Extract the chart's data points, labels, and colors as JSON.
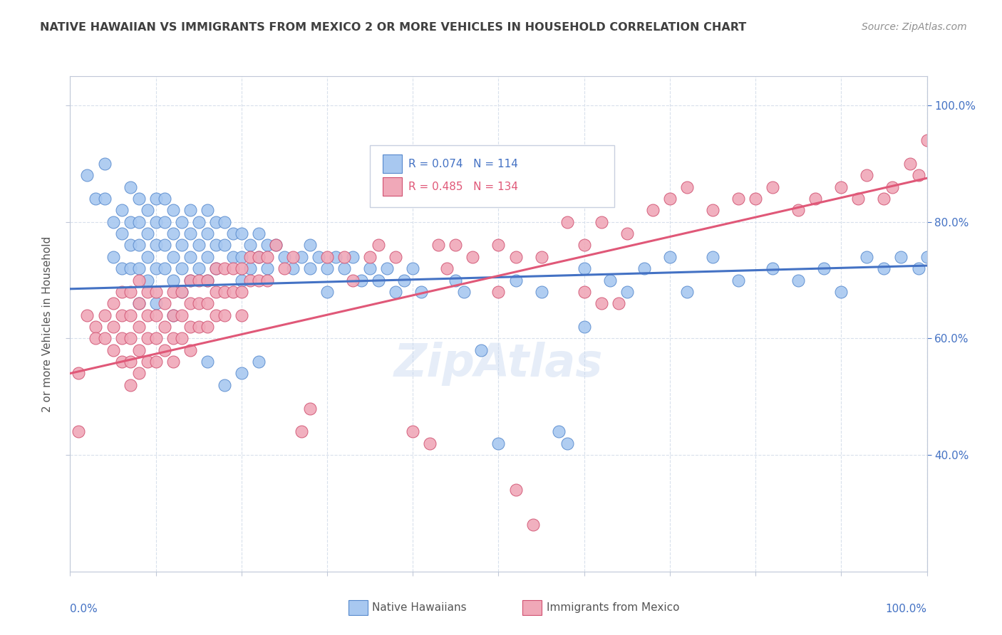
{
  "title": "NATIVE HAWAIIAN VS IMMIGRANTS FROM MEXICO 2 OR MORE VEHICLES IN HOUSEHOLD CORRELATION CHART",
  "source": "Source: ZipAtlas.com",
  "ylabel": "2 or more Vehicles in Household",
  "legend_blue_label": "R = 0.074   N = 114",
  "legend_pink_label": "R = 0.485   N = 134",
  "legend_bottom_blue": "Native Hawaiians",
  "legend_bottom_pink": "Immigrants from Mexico",
  "blue_color": "#a8c8f0",
  "pink_color": "#f0a8b8",
  "blue_edge_color": "#5588cc",
  "pink_edge_color": "#d05070",
  "blue_line_color": "#4472c4",
  "pink_line_color": "#e05878",
  "title_color": "#404040",
  "source_color": "#909090",
  "axis_label_color": "#4472c4",
  "grid_color": "#d8e0ec",
  "background_color": "#ffffff",
  "blue_R": 0.074,
  "pink_R": 0.485,
  "xlim": [
    0.0,
    1.0
  ],
  "ylim": [
    0.2,
    1.05
  ],
  "right_yticks": [
    0.4,
    0.6,
    0.8,
    1.0
  ],
  "right_yticklabels": [
    "40.0%",
    "60.0%",
    "80.0%",
    "100.0%"
  ],
  "blue_line_y0": 0.685,
  "blue_line_y1": 0.725,
  "pink_line_y0": 0.54,
  "pink_line_y1": 0.875,
  "blue_scatter": [
    [
      0.02,
      0.88
    ],
    [
      0.03,
      0.84
    ],
    [
      0.04,
      0.9
    ],
    [
      0.04,
      0.84
    ],
    [
      0.05,
      0.8
    ],
    [
      0.05,
      0.74
    ],
    [
      0.06,
      0.82
    ],
    [
      0.06,
      0.78
    ],
    [
      0.06,
      0.72
    ],
    [
      0.07,
      0.86
    ],
    [
      0.07,
      0.8
    ],
    [
      0.07,
      0.76
    ],
    [
      0.07,
      0.72
    ],
    [
      0.08,
      0.84
    ],
    [
      0.08,
      0.8
    ],
    [
      0.08,
      0.76
    ],
    [
      0.08,
      0.72
    ],
    [
      0.09,
      0.82
    ],
    [
      0.09,
      0.78
    ],
    [
      0.09,
      0.74
    ],
    [
      0.09,
      0.7
    ],
    [
      0.1,
      0.84
    ],
    [
      0.1,
      0.8
    ],
    [
      0.1,
      0.76
    ],
    [
      0.1,
      0.72
    ],
    [
      0.11,
      0.84
    ],
    [
      0.11,
      0.8
    ],
    [
      0.11,
      0.76
    ],
    [
      0.11,
      0.72
    ],
    [
      0.12,
      0.82
    ],
    [
      0.12,
      0.78
    ],
    [
      0.12,
      0.74
    ],
    [
      0.12,
      0.7
    ],
    [
      0.13,
      0.8
    ],
    [
      0.13,
      0.76
    ],
    [
      0.13,
      0.72
    ],
    [
      0.13,
      0.68
    ],
    [
      0.14,
      0.82
    ],
    [
      0.14,
      0.78
    ],
    [
      0.14,
      0.74
    ],
    [
      0.14,
      0.7
    ],
    [
      0.15,
      0.8
    ],
    [
      0.15,
      0.76
    ],
    [
      0.15,
      0.72
    ],
    [
      0.16,
      0.82
    ],
    [
      0.16,
      0.78
    ],
    [
      0.16,
      0.74
    ],
    [
      0.16,
      0.7
    ],
    [
      0.17,
      0.8
    ],
    [
      0.17,
      0.76
    ],
    [
      0.17,
      0.72
    ],
    [
      0.18,
      0.8
    ],
    [
      0.18,
      0.76
    ],
    [
      0.19,
      0.78
    ],
    [
      0.19,
      0.74
    ],
    [
      0.2,
      0.78
    ],
    [
      0.2,
      0.74
    ],
    [
      0.2,
      0.7
    ],
    [
      0.21,
      0.76
    ],
    [
      0.21,
      0.72
    ],
    [
      0.22,
      0.78
    ],
    [
      0.22,
      0.74
    ],
    [
      0.23,
      0.76
    ],
    [
      0.23,
      0.72
    ],
    [
      0.24,
      0.76
    ],
    [
      0.25,
      0.74
    ],
    [
      0.26,
      0.72
    ],
    [
      0.27,
      0.74
    ],
    [
      0.28,
      0.76
    ],
    [
      0.28,
      0.72
    ],
    [
      0.29,
      0.74
    ],
    [
      0.3,
      0.72
    ],
    [
      0.3,
      0.68
    ],
    [
      0.31,
      0.74
    ],
    [
      0.32,
      0.72
    ],
    [
      0.33,
      0.74
    ],
    [
      0.34,
      0.7
    ],
    [
      0.35,
      0.72
    ],
    [
      0.36,
      0.7
    ],
    [
      0.37,
      0.72
    ],
    [
      0.38,
      0.68
    ],
    [
      0.39,
      0.7
    ],
    [
      0.4,
      0.72
    ],
    [
      0.41,
      0.68
    ],
    [
      0.43,
      0.92
    ],
    [
      0.44,
      0.88
    ],
    [
      0.45,
      0.7
    ],
    [
      0.46,
      0.68
    ],
    [
      0.48,
      0.58
    ],
    [
      0.5,
      0.42
    ],
    [
      0.52,
      0.7
    ],
    [
      0.55,
      0.68
    ],
    [
      0.57,
      0.44
    ],
    [
      0.58,
      0.42
    ],
    [
      0.6,
      0.72
    ],
    [
      0.6,
      0.62
    ],
    [
      0.63,
      0.7
    ],
    [
      0.65,
      0.68
    ],
    [
      0.67,
      0.72
    ],
    [
      0.7,
      0.74
    ],
    [
      0.72,
      0.68
    ],
    [
      0.75,
      0.74
    ],
    [
      0.78,
      0.7
    ],
    [
      0.82,
      0.72
    ],
    [
      0.85,
      0.7
    ],
    [
      0.88,
      0.72
    ],
    [
      0.9,
      0.68
    ],
    [
      0.93,
      0.74
    ],
    [
      0.95,
      0.72
    ],
    [
      0.97,
      0.74
    ],
    [
      0.99,
      0.72
    ],
    [
      1.0,
      0.74
    ],
    [
      0.16,
      0.56
    ],
    [
      0.18,
      0.52
    ],
    [
      0.2,
      0.54
    ],
    [
      0.22,
      0.56
    ],
    [
      0.08,
      0.66
    ],
    [
      0.1,
      0.66
    ],
    [
      0.12,
      0.64
    ]
  ],
  "pink_scatter": [
    [
      0.02,
      0.64
    ],
    [
      0.03,
      0.62
    ],
    [
      0.03,
      0.6
    ],
    [
      0.04,
      0.64
    ],
    [
      0.04,
      0.6
    ],
    [
      0.05,
      0.66
    ],
    [
      0.05,
      0.62
    ],
    [
      0.05,
      0.58
    ],
    [
      0.06,
      0.68
    ],
    [
      0.06,
      0.64
    ],
    [
      0.06,
      0.6
    ],
    [
      0.06,
      0.56
    ],
    [
      0.07,
      0.68
    ],
    [
      0.07,
      0.64
    ],
    [
      0.07,
      0.6
    ],
    [
      0.07,
      0.56
    ],
    [
      0.07,
      0.52
    ],
    [
      0.08,
      0.7
    ],
    [
      0.08,
      0.66
    ],
    [
      0.08,
      0.62
    ],
    [
      0.08,
      0.58
    ],
    [
      0.08,
      0.54
    ],
    [
      0.09,
      0.68
    ],
    [
      0.09,
      0.64
    ],
    [
      0.09,
      0.6
    ],
    [
      0.09,
      0.56
    ],
    [
      0.1,
      0.68
    ],
    [
      0.1,
      0.64
    ],
    [
      0.1,
      0.6
    ],
    [
      0.1,
      0.56
    ],
    [
      0.11,
      0.66
    ],
    [
      0.11,
      0.62
    ],
    [
      0.11,
      0.58
    ],
    [
      0.12,
      0.68
    ],
    [
      0.12,
      0.64
    ],
    [
      0.12,
      0.6
    ],
    [
      0.12,
      0.56
    ],
    [
      0.13,
      0.68
    ],
    [
      0.13,
      0.64
    ],
    [
      0.13,
      0.6
    ],
    [
      0.14,
      0.7
    ],
    [
      0.14,
      0.66
    ],
    [
      0.14,
      0.62
    ],
    [
      0.14,
      0.58
    ],
    [
      0.15,
      0.7
    ],
    [
      0.15,
      0.66
    ],
    [
      0.15,
      0.62
    ],
    [
      0.16,
      0.7
    ],
    [
      0.16,
      0.66
    ],
    [
      0.16,
      0.62
    ],
    [
      0.17,
      0.72
    ],
    [
      0.17,
      0.68
    ],
    [
      0.17,
      0.64
    ],
    [
      0.18,
      0.72
    ],
    [
      0.18,
      0.68
    ],
    [
      0.18,
      0.64
    ],
    [
      0.19,
      0.72
    ],
    [
      0.19,
      0.68
    ],
    [
      0.2,
      0.72
    ],
    [
      0.2,
      0.68
    ],
    [
      0.2,
      0.64
    ],
    [
      0.21,
      0.74
    ],
    [
      0.21,
      0.7
    ],
    [
      0.22,
      0.74
    ],
    [
      0.22,
      0.7
    ],
    [
      0.23,
      0.74
    ],
    [
      0.23,
      0.7
    ],
    [
      0.24,
      0.76
    ],
    [
      0.25,
      0.72
    ],
    [
      0.26,
      0.74
    ],
    [
      0.27,
      0.44
    ],
    [
      0.28,
      0.48
    ],
    [
      0.3,
      0.74
    ],
    [
      0.32,
      0.74
    ],
    [
      0.33,
      0.7
    ],
    [
      0.35,
      0.74
    ],
    [
      0.36,
      0.76
    ],
    [
      0.38,
      0.74
    ],
    [
      0.4,
      0.44
    ],
    [
      0.42,
      0.42
    ],
    [
      0.43,
      0.76
    ],
    [
      0.44,
      0.72
    ],
    [
      0.45,
      0.76
    ],
    [
      0.47,
      0.74
    ],
    [
      0.5,
      0.76
    ],
    [
      0.52,
      0.34
    ],
    [
      0.54,
      0.28
    ],
    [
      0.55,
      0.74
    ],
    [
      0.58,
      0.8
    ],
    [
      0.6,
      0.76
    ],
    [
      0.62,
      0.8
    ],
    [
      0.65,
      0.78
    ],
    [
      0.68,
      0.82
    ],
    [
      0.7,
      0.84
    ],
    [
      0.72,
      0.86
    ],
    [
      0.75,
      0.82
    ],
    [
      0.78,
      0.84
    ],
    [
      0.8,
      0.84
    ],
    [
      0.82,
      0.86
    ],
    [
      0.85,
      0.82
    ],
    [
      0.87,
      0.84
    ],
    [
      0.9,
      0.86
    ],
    [
      0.92,
      0.84
    ],
    [
      0.93,
      0.88
    ],
    [
      0.95,
      0.84
    ],
    [
      0.96,
      0.86
    ],
    [
      0.98,
      0.9
    ],
    [
      0.99,
      0.88
    ],
    [
      1.0,
      0.94
    ],
    [
      0.01,
      0.54
    ],
    [
      0.01,
      0.44
    ],
    [
      0.6,
      0.68
    ],
    [
      0.62,
      0.66
    ],
    [
      0.64,
      0.66
    ],
    [
      0.5,
      0.68
    ],
    [
      0.52,
      0.74
    ]
  ]
}
